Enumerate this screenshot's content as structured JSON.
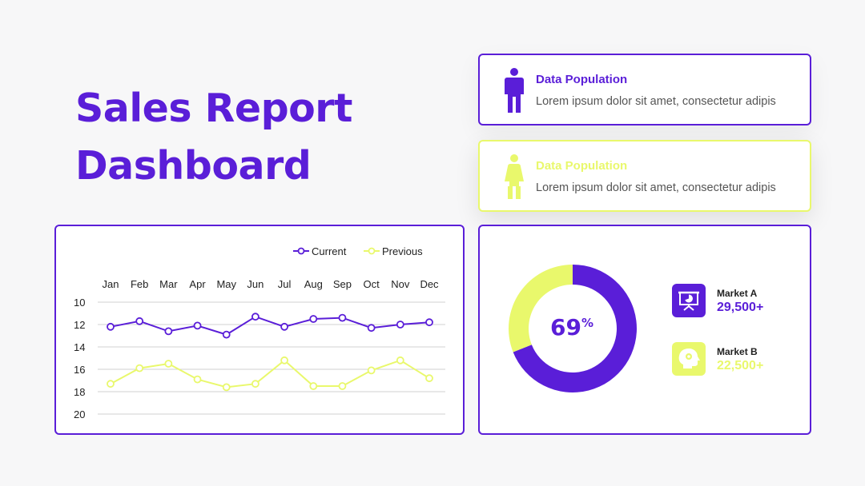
{
  "title": {
    "line1": "Sales Report",
    "line2": "Dashboard"
  },
  "cards": [
    {
      "title": "Data Population",
      "desc": "Lorem ipsum dolor sit amet, consectetur adipis",
      "color": "#5a1ed8",
      "icon": "man-icon"
    },
    {
      "title": "Data Population",
      "desc": "Lorem ipsum dolor sit amet, consectetur adipis",
      "color": "#e9f86c",
      "icon": "woman-icon"
    }
  ],
  "chart_data": {
    "type": "line",
    "categories": [
      "Jan",
      "Feb",
      "Mar",
      "Apr",
      "May",
      "Jun",
      "Jul",
      "Aug",
      "Sep",
      "Oct",
      "Nov",
      "Dec"
    ],
    "series": [
      {
        "name": "Current",
        "color": "#5a1ed8",
        "values": [
          12.2,
          11.7,
          12.6,
          12.1,
          12.9,
          11.3,
          12.2,
          11.5,
          11.4,
          12.3,
          12.0,
          11.8
        ]
      },
      {
        "name": "Previous",
        "color": "#e9f86c",
        "values": [
          17.3,
          15.9,
          15.5,
          16.9,
          17.6,
          17.3,
          15.2,
          17.5,
          17.5,
          16.1,
          15.2,
          16.8
        ]
      }
    ],
    "yticks": [
      10,
      12,
      14,
      16,
      18,
      20
    ],
    "ylim": [
      10,
      20
    ],
    "y_inverted": true,
    "x_axis_position": "top",
    "legend_position": "top-right",
    "grid": true
  },
  "donut": {
    "value": 69,
    "label": "69",
    "unit": "%",
    "primary_color": "#5a1ed8",
    "secondary_color": "#e9f86c"
  },
  "markets": [
    {
      "label": "Market A",
      "value": "29,500+",
      "color": "#5a1ed8",
      "icon": "presentation-icon"
    },
    {
      "label": "Market B",
      "value": "22,500+",
      "color": "#e9f86c",
      "icon": "head-idea-icon"
    }
  ]
}
